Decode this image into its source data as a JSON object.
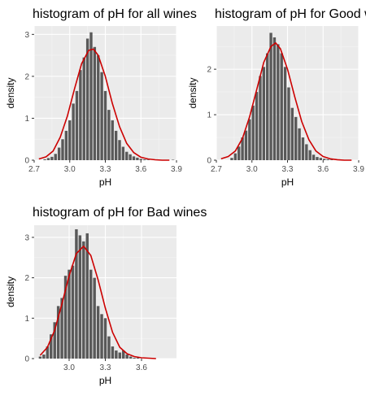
{
  "colors": {
    "panel_bg": "#ebebeb",
    "grid_major": "#ffffff",
    "grid_minor": "#f5f5f5",
    "bar_fill": "#595959",
    "density_line": "#cc0000"
  },
  "chart_data": [
    {
      "type": "bar",
      "title": "histogram of pH for all wines",
      "xlabel": "pH",
      "ylabel": "density",
      "xlim": [
        2.7,
        3.9
      ],
      "ylim": [
        0,
        3.2
      ],
      "x_ticks": [
        2.7,
        3.0,
        3.3,
        3.6,
        3.9
      ],
      "x_tick_labels": [
        "2.7",
        "3.0",
        "3.3",
        "3.6",
        "3.9"
      ],
      "y_ticks": [
        0,
        1,
        2,
        3
      ],
      "y_tick_labels": [
        "0",
        "1",
        "2",
        "3"
      ],
      "grid": true,
      "bin_width": 0.03,
      "bins_x": [
        2.79,
        2.82,
        2.85,
        2.88,
        2.91,
        2.94,
        2.97,
        3.0,
        3.03,
        3.06,
        3.09,
        3.12,
        3.15,
        3.18,
        3.21,
        3.24,
        3.27,
        3.3,
        3.33,
        3.36,
        3.39,
        3.42,
        3.45,
        3.48,
        3.51,
        3.54,
        3.57,
        3.6,
        3.63,
        3.66,
        3.69,
        3.72,
        3.75,
        3.78,
        3.81,
        3.84,
        3.87
      ],
      "values": [
        0.02,
        0.05,
        0.08,
        0.15,
        0.3,
        0.5,
        0.7,
        0.95,
        1.35,
        1.65,
        2.15,
        2.45,
        2.9,
        3.05,
        2.7,
        2.5,
        2.1,
        1.65,
        1.2,
        0.95,
        0.7,
        0.48,
        0.32,
        0.2,
        0.14,
        0.09,
        0.06,
        0.03,
        0.02,
        0.01,
        0.0,
        0.0,
        0.01,
        0.0,
        0.0,
        0.0,
        0.01
      ],
      "density_x": [
        2.74,
        2.8,
        2.86,
        2.92,
        2.98,
        3.04,
        3.1,
        3.16,
        3.2,
        3.24,
        3.3,
        3.36,
        3.42,
        3.48,
        3.54,
        3.6,
        3.66,
        3.72,
        3.78,
        3.84
      ],
      "density_y": [
        0.03,
        0.08,
        0.22,
        0.55,
        1.05,
        1.7,
        2.3,
        2.62,
        2.65,
        2.5,
        2.0,
        1.35,
        0.8,
        0.4,
        0.18,
        0.07,
        0.03,
        0.01,
        0.0,
        0.0
      ]
    },
    {
      "type": "bar",
      "title": "histogram of pH for Good wines",
      "xlabel": "pH",
      "ylabel": "density",
      "xlim": [
        2.7,
        3.9
      ],
      "ylim": [
        0,
        2.95
      ],
      "x_ticks": [
        2.7,
        3.0,
        3.3,
        3.6,
        3.9
      ],
      "x_tick_labels": [
        "2.7",
        "3.0",
        "3.3",
        "3.6",
        "3.9"
      ],
      "y_ticks": [
        0,
        1,
        2
      ],
      "y_tick_labels": [
        "0",
        "1",
        "2"
      ],
      "grid": true,
      "bin_width": 0.03,
      "bins_x": [
        2.83,
        2.86,
        2.89,
        2.92,
        2.95,
        2.98,
        3.01,
        3.04,
        3.07,
        3.1,
        3.13,
        3.16,
        3.19,
        3.22,
        3.25,
        3.28,
        3.31,
        3.34,
        3.37,
        3.4,
        3.43,
        3.46,
        3.49,
        3.52,
        3.55,
        3.58,
        3.61,
        3.64,
        3.67
      ],
      "values": [
        0.05,
        0.15,
        0.3,
        0.5,
        0.65,
        0.9,
        1.2,
        1.5,
        1.85,
        2.05,
        2.35,
        2.8,
        2.7,
        2.55,
        2.35,
        2.05,
        1.6,
        1.15,
        0.95,
        0.7,
        0.5,
        0.35,
        0.22,
        0.12,
        0.07,
        0.05,
        0.03,
        0.02,
        0.01
      ],
      "density_x": [
        2.74,
        2.8,
        2.86,
        2.92,
        2.98,
        3.04,
        3.1,
        3.16,
        3.2,
        3.24,
        3.3,
        3.36,
        3.42,
        3.48,
        3.54,
        3.6,
        3.66,
        3.72,
        3.78,
        3.84
      ],
      "density_y": [
        0.03,
        0.08,
        0.2,
        0.48,
        0.95,
        1.55,
        2.15,
        2.5,
        2.58,
        2.45,
        2.0,
        1.4,
        0.85,
        0.45,
        0.2,
        0.08,
        0.03,
        0.01,
        0.0,
        0.0
      ]
    },
    {
      "type": "bar",
      "title": "histogram of pH for Bad wines",
      "xlabel": "pH",
      "ylabel": "density",
      "xlim": [
        2.71,
        3.89
      ],
      "ylim": [
        0,
        3.3
      ],
      "x_ticks": [
        3.0,
        3.3,
        3.6
      ],
      "x_tick_labels": [
        "3.0",
        "3.3",
        "3.6"
      ],
      "y_ticks": [
        0,
        1,
        2,
        3
      ],
      "y_tick_labels": [
        "0",
        "1",
        "2",
        "3"
      ],
      "grid": true,
      "bin_width": 0.03,
      "bins_x": [
        2.76,
        2.79,
        2.82,
        2.85,
        2.88,
        2.91,
        2.94,
        2.97,
        3.0,
        3.03,
        3.06,
        3.09,
        3.12,
        3.15,
        3.18,
        3.21,
        3.24,
        3.27,
        3.3,
        3.33,
        3.36,
        3.39,
        3.42,
        3.45,
        3.48,
        3.51,
        3.54,
        3.57
      ],
      "values": [
        0.05,
        0.1,
        0.3,
        0.6,
        0.9,
        1.3,
        1.5,
        2.05,
        2.2,
        2.3,
        3.2,
        3.05,
        2.9,
        3.1,
        2.2,
        2.0,
        1.3,
        1.1,
        1.0,
        0.55,
        0.3,
        0.2,
        0.15,
        0.2,
        0.1,
        0.05,
        0.02,
        0.02
      ],
      "density_x": [
        2.76,
        2.82,
        2.88,
        2.94,
        3.0,
        3.06,
        3.12,
        3.18,
        3.24,
        3.3,
        3.36,
        3.42,
        3.48,
        3.54,
        3.6,
        3.66,
        3.72
      ],
      "density_y": [
        0.08,
        0.28,
        0.7,
        1.35,
        2.05,
        2.6,
        2.78,
        2.55,
        1.95,
        1.25,
        0.65,
        0.28,
        0.12,
        0.05,
        0.02,
        0.01,
        0.0
      ]
    }
  ]
}
